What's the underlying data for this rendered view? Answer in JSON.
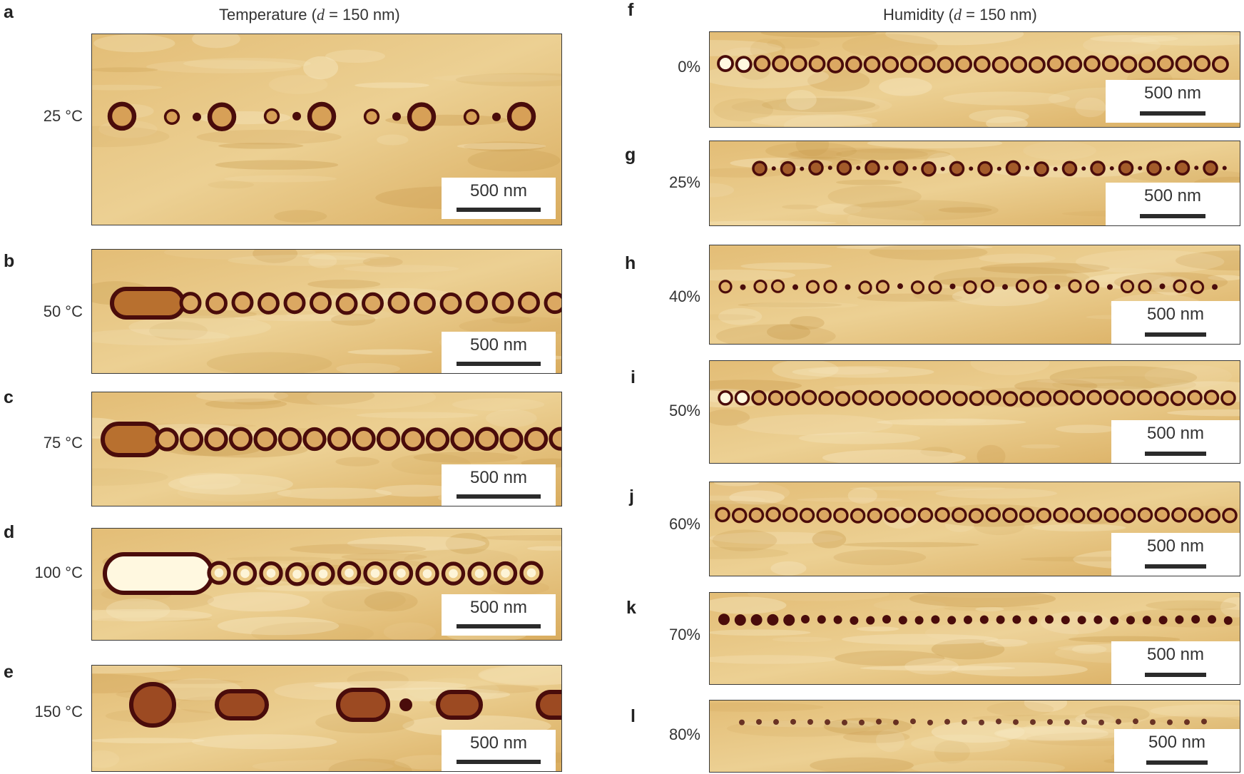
{
  "left_title": {
    "prefix": "Temperature (",
    "var": "d",
    "suffix": " = 150 nm)"
  },
  "right_title": {
    "prefix": "Humidity (",
    "var": "d",
    "suffix": " = 150 nm)"
  },
  "scale_text": "500 nm",
  "colors": {
    "background": "#ddb469",
    "light": "#f7e8c2",
    "dot_dark": "#4a0c0b",
    "dot_ring": "#6b1a12",
    "dot_bright": "#fff8e0"
  },
  "temperature_panels": [
    {
      "label": "a",
      "condition": "25 °C"
    },
    {
      "label": "b",
      "condition": "50 °C"
    },
    {
      "label": "c",
      "condition": "75 °C"
    },
    {
      "label": "d",
      "condition": "100 °C"
    },
    {
      "label": "e",
      "condition": "150 °C"
    }
  ],
  "humidity_panels": [
    {
      "label": "f",
      "condition": "0%"
    },
    {
      "label": "g",
      "condition": "25%"
    },
    {
      "label": "h",
      "condition": "40%"
    },
    {
      "label": "i",
      "condition": "50%"
    },
    {
      "label": "j",
      "condition": "60%"
    },
    {
      "label": "k",
      "condition": "70%"
    },
    {
      "label": "l",
      "condition": "80%"
    }
  ]
}
